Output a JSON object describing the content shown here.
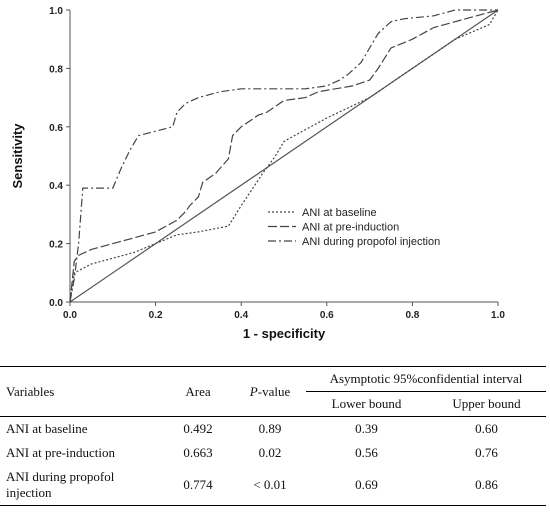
{
  "chart_data": {
    "type": "line",
    "xlabel": "1 - specificity",
    "ylabel": "Sensitivity",
    "xlim": [
      0,
      1
    ],
    "ylim": [
      0,
      1
    ],
    "xticks": [
      "0.0",
      "0.2",
      "0.4",
      "0.6",
      "0.8",
      "1.0"
    ],
    "yticks": [
      "0.0",
      "0.2",
      "0.4",
      "0.6",
      "0.8",
      "1.0"
    ],
    "legend_position": "middle-right",
    "grid": false,
    "reference_line": {
      "x": [
        0,
        1
      ],
      "y": [
        0,
        1
      ],
      "color": "#555555"
    },
    "series": [
      {
        "name": "ANI  at baseline",
        "dash": "2,2",
        "color": "#444444",
        "x": [
          0,
          0.01,
          0.05,
          0.15,
          0.25,
          0.3,
          0.37,
          0.4,
          0.45,
          0.48,
          0.5,
          0.6,
          0.7,
          0.8,
          0.9,
          0.98,
          1.0
        ],
        "y": [
          0,
          0.1,
          0.13,
          0.17,
          0.23,
          0.24,
          0.26,
          0.33,
          0.44,
          0.5,
          0.55,
          0.63,
          0.7,
          0.8,
          0.9,
          0.95,
          1.0
        ]
      },
      {
        "name": "ANI  at pre-induction",
        "dash": "9,3",
        "color": "#444444",
        "x": [
          0,
          0.01,
          0.02,
          0.05,
          0.1,
          0.15,
          0.2,
          0.25,
          0.27,
          0.28,
          0.3,
          0.31,
          0.34,
          0.37,
          0.38,
          0.4,
          0.42,
          0.44,
          0.46,
          0.48,
          0.5,
          0.55,
          0.58,
          0.62,
          0.66,
          0.7,
          0.72,
          0.75,
          0.8,
          0.85,
          0.9,
          0.95,
          1.0
        ],
        "y": [
          0,
          0.14,
          0.16,
          0.18,
          0.2,
          0.22,
          0.24,
          0.28,
          0.31,
          0.33,
          0.36,
          0.41,
          0.44,
          0.49,
          0.57,
          0.6,
          0.62,
          0.64,
          0.65,
          0.67,
          0.69,
          0.7,
          0.72,
          0.73,
          0.74,
          0.76,
          0.8,
          0.87,
          0.9,
          0.94,
          0.96,
          0.98,
          1.0
        ]
      },
      {
        "name": "ANI  during propofol  injection",
        "dash": "8,3,2,3",
        "color": "#444444",
        "x": [
          0,
          0.01,
          0.02,
          0.03,
          0.1,
          0.12,
          0.14,
          0.16,
          0.24,
          0.25,
          0.27,
          0.3,
          0.35,
          0.4,
          0.45,
          0.5,
          0.55,
          0.6,
          0.63,
          0.65,
          0.68,
          0.7,
          0.72,
          0.75,
          0.78,
          0.85,
          0.9,
          0.95,
          1.0
        ],
        "y": [
          0,
          0.08,
          0.2,
          0.39,
          0.39,
          0.46,
          0.52,
          0.57,
          0.6,
          0.65,
          0.68,
          0.7,
          0.72,
          0.73,
          0.73,
          0.73,
          0.73,
          0.74,
          0.76,
          0.78,
          0.82,
          0.87,
          0.92,
          0.96,
          0.97,
          0.98,
          1.0,
          1.0,
          1.0
        ]
      }
    ]
  },
  "table": {
    "headers": {
      "variables": "Variables",
      "area": "Area",
      "pvalue_italic": "P",
      "pvalue_rest": "-value",
      "ci": "Asymptotic 95%confidential interval",
      "lower": "Lower bound",
      "upper": "Upper bound"
    },
    "rows": [
      {
        "variable": "ANI at baseline",
        "area": "0.492",
        "p": "0.89",
        "lower": "0.39",
        "upper": "0.60"
      },
      {
        "variable": "ANI at pre-induction",
        "area": "0.663",
        "p": "0.02",
        "lower": "0.56",
        "upper": "0.76"
      },
      {
        "variable": "ANI during propofol injection",
        "area": "0.774",
        "p": "< 0.01",
        "lower": "0.69",
        "upper": "0.86"
      }
    ]
  }
}
